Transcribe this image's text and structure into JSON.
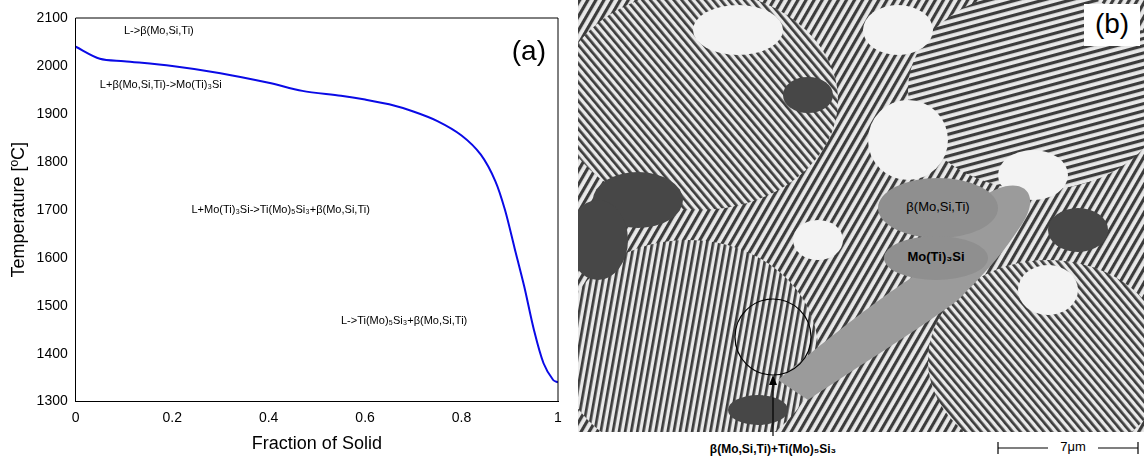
{
  "chart_data": {
    "type": "line",
    "panel_label": "(a)",
    "x_label": "Fraction of Solid",
    "y_label": "Temperature [ºC]",
    "x": [
      0,
      0.05,
      0.1,
      0.2,
      0.3,
      0.4,
      0.47,
      0.55,
      0.6,
      0.65,
      0.7,
      0.75,
      0.8,
      0.84,
      0.87,
      0.89,
      0.91,
      0.93,
      0.95,
      0.97,
      0.99,
      1.0
    ],
    "values": [
      2040,
      2015,
      2010,
      2000,
      1985,
      1965,
      1948,
      1938,
      1930,
      1920,
      1905,
      1885,
      1855,
      1815,
      1760,
      1700,
      1620,
      1540,
      1450,
      1380,
      1345,
      1340
    ],
    "color": "#0a0ae6",
    "xlim": [
      0,
      1
    ],
    "xticks": [
      0,
      0.2,
      0.4,
      0.6,
      0.8,
      1
    ],
    "ylim": [
      1300,
      2100
    ],
    "yticks": [
      1300,
      1400,
      1500,
      1600,
      1700,
      1800,
      1900,
      2000,
      2100
    ],
    "grid": false,
    "annotations": [
      "L->β(Mo,Si,Ti)",
      "L+β(Mo,Si,Ti)->Mo(Ti)₃Si",
      "L+Mo(Ti)₃Si->Ti(Mo)₅Si₃+β(Mo,Si,Ti)",
      "L->Ti(Mo)₅Si₃+β(Mo,Si,Ti)"
    ]
  },
  "micrograph": {
    "panel_label": "(b)",
    "labels": [
      "β(Mo,Si,Ti)",
      "Mo(Ti)₃Si"
    ],
    "caption": "β(Mo,Si,Ti)+Ti(Mo)₅Si₃",
    "scale_bar": "7μm"
  }
}
